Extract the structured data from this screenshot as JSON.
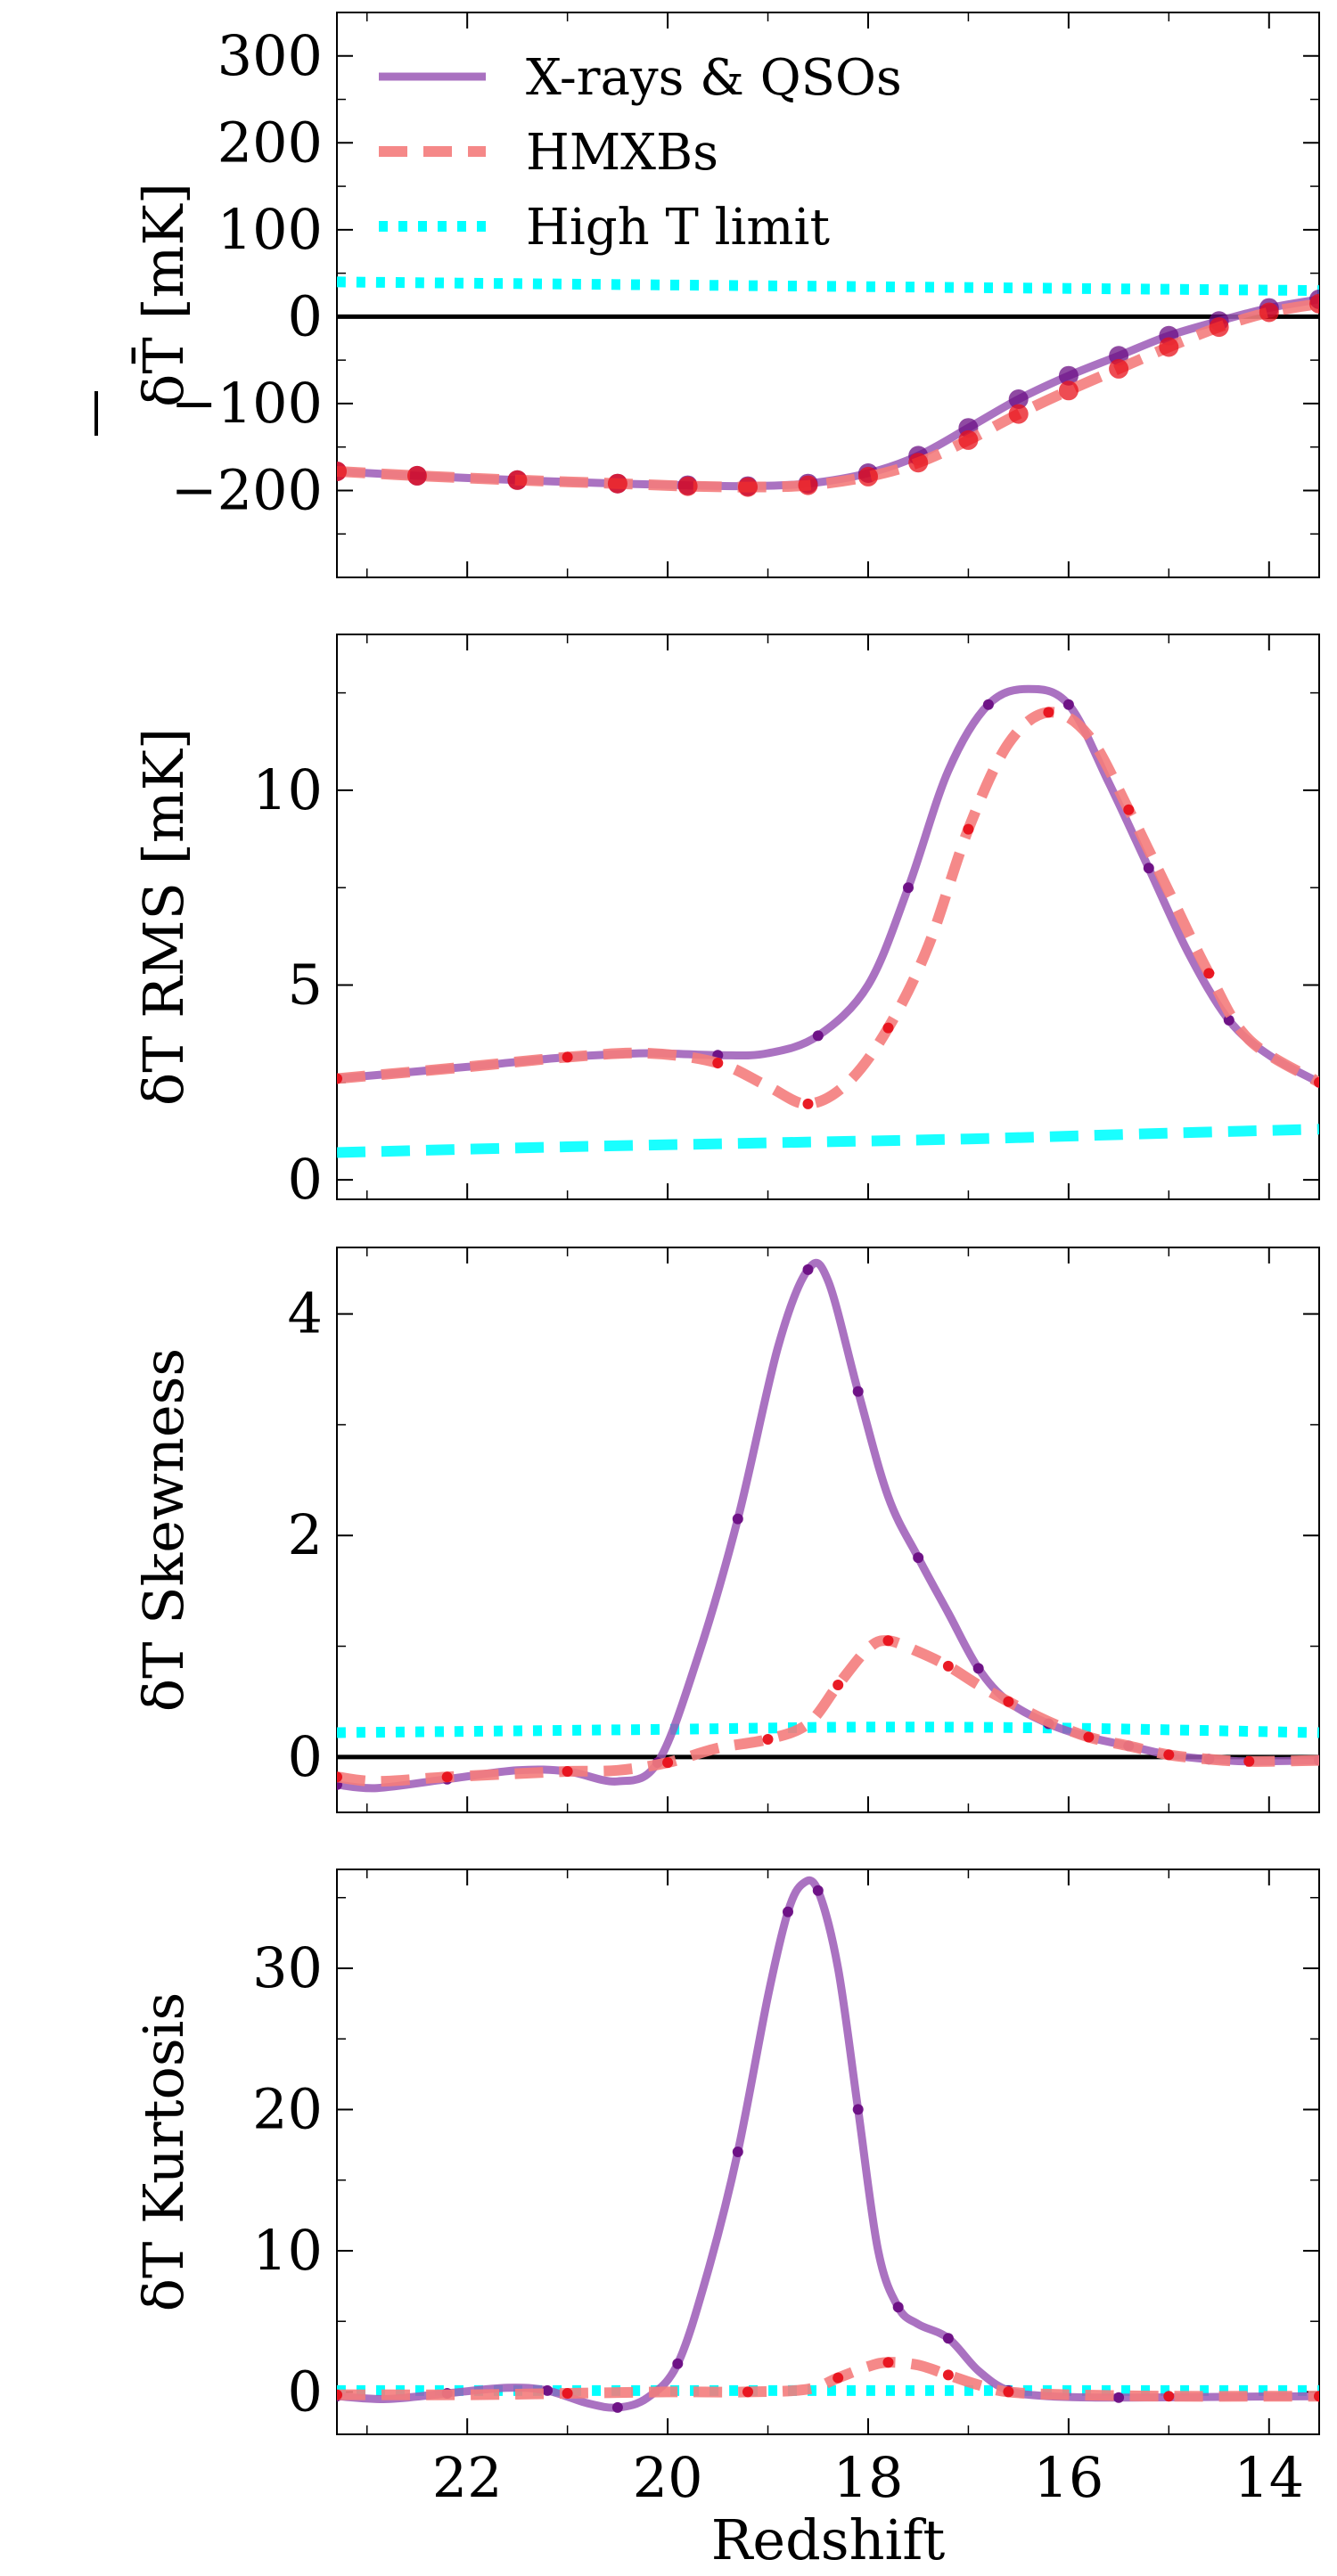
{
  "chart_data": [
    {
      "type": "line",
      "panel": "mean-brightness-temperature",
      "ylabel": "δT̄ [mK]",
      "xlim": [
        23.3,
        13.5
      ],
      "ylim": [
        -300,
        350
      ],
      "yticks": [
        -200,
        -100,
        0,
        100,
        200,
        300
      ],
      "ytick_labels": [
        "−200",
        "−100",
        "0",
        "100",
        "200",
        "300"
      ],
      "xticks": [
        22,
        20,
        18,
        16,
        14
      ],
      "x_tick_labels_shown": false,
      "reference_line": 0,
      "legend": {
        "position": "top-left"
      },
      "series": [
        {
          "name": "X-rays & QSOs",
          "style": "solid",
          "color": "#9b59b6",
          "markers": true,
          "x": [
            23.3,
            22.5,
            21.5,
            20.5,
            19.8,
            19.2,
            18.6,
            18.0,
            17.5,
            17.0,
            16.5,
            16.0,
            15.5,
            15.0,
            14.5,
            14.0,
            13.5
          ],
          "values": [
            -178,
            -183,
            -188,
            -192,
            -194,
            -195,
            -192,
            -180,
            -160,
            -128,
            -95,
            -68,
            -45,
            -22,
            -5,
            10,
            20
          ]
        },
        {
          "name": "HMXBs",
          "style": "dashed",
          "color": "#f47c7c",
          "markers": true,
          "x": [
            23.3,
            22.5,
            21.5,
            20.5,
            19.8,
            19.2,
            18.6,
            18.0,
            17.5,
            17.0,
            16.5,
            16.0,
            15.5,
            15.0,
            14.5,
            14.0,
            13.5
          ],
          "values": [
            -178,
            -183,
            -188,
            -192,
            -195,
            -196,
            -194,
            -184,
            -168,
            -142,
            -112,
            -85,
            -60,
            -35,
            -12,
            5,
            15
          ]
        },
        {
          "name": "High T limit",
          "style": "dotted",
          "color": "#00ffff",
          "markers": false,
          "x": [
            23.3,
            21.5,
            19.5,
            17.5,
            15.5,
            13.5
          ],
          "values": [
            40,
            38,
            36,
            34,
            32,
            30
          ]
        }
      ]
    },
    {
      "type": "line",
      "panel": "rms",
      "ylabel": "δT RMS [mK]",
      "xlim": [
        23.3,
        13.5
      ],
      "ylim": [
        -0.5,
        14
      ],
      "yticks": [
        0,
        5,
        10
      ],
      "ytick_labels": [
        "0",
        "5",
        "10"
      ],
      "xticks": [
        22,
        20,
        18,
        16,
        14
      ],
      "x_tick_labels_shown": false,
      "series": [
        {
          "name": "X-rays & QSOs",
          "style": "solid",
          "color": "#9b59b6",
          "markers": true,
          "x": [
            23.3,
            22.0,
            21.0,
            20.2,
            19.5,
            19.0,
            18.5,
            18.0,
            17.6,
            17.2,
            16.8,
            16.4,
            16.0,
            15.6,
            15.2,
            14.8,
            14.4,
            14.0,
            13.5
          ],
          "values": [
            2.6,
            2.9,
            3.15,
            3.25,
            3.2,
            3.25,
            3.7,
            5.0,
            7.5,
            10.5,
            12.2,
            12.6,
            12.2,
            10.2,
            8.0,
            5.8,
            4.1,
            3.2,
            2.5
          ]
        },
        {
          "name": "HMXBs",
          "style": "dashed",
          "color": "#f47c7c",
          "markers": true,
          "x": [
            23.3,
            22.0,
            21.0,
            20.2,
            19.5,
            19.0,
            18.6,
            18.2,
            17.8,
            17.4,
            17.0,
            16.6,
            16.2,
            15.8,
            15.4,
            15.0,
            14.6,
            14.2,
            13.5
          ],
          "values": [
            2.6,
            2.9,
            3.15,
            3.25,
            3.0,
            2.4,
            1.95,
            2.5,
            3.9,
            6.0,
            9.0,
            11.2,
            12.0,
            11.4,
            9.5,
            7.4,
            5.3,
            3.6,
            2.5
          ]
        },
        {
          "name": "High T limit",
          "style": "dashed",
          "color": "#00ffff",
          "markers": false,
          "x": [
            23.3,
            21.0,
            19.0,
            17.0,
            15.0,
            13.5
          ],
          "values": [
            0.7,
            0.85,
            0.95,
            1.05,
            1.2,
            1.3
          ]
        }
      ]
    },
    {
      "type": "line",
      "panel": "skewness",
      "ylabel": "δT Skewness",
      "xlim": [
        23.3,
        13.5
      ],
      "ylim": [
        -0.5,
        4.6
      ],
      "yticks": [
        0,
        2,
        4
      ],
      "ytick_labels": [
        "0",
        "2",
        "4"
      ],
      "xticks": [
        22,
        20,
        18,
        16,
        14
      ],
      "x_tick_labels_shown": false,
      "reference_line": 0,
      "series": [
        {
          "name": "X-rays & QSOs",
          "style": "solid",
          "color": "#9b59b6",
          "markers": true,
          "x": [
            23.3,
            22.9,
            22.2,
            21.5,
            21.0,
            20.5,
            20.1,
            19.7,
            19.3,
            18.9,
            18.6,
            18.4,
            18.1,
            17.8,
            17.5,
            17.2,
            16.9,
            16.6,
            16.2,
            15.8,
            15.4,
            15.0,
            14.6,
            14.2,
            13.5
          ],
          "values": [
            -0.25,
            -0.28,
            -0.2,
            -0.12,
            -0.13,
            -0.22,
            -0.05,
            0.9,
            2.15,
            3.7,
            4.4,
            4.3,
            3.3,
            2.35,
            1.8,
            1.3,
            0.8,
            0.5,
            0.3,
            0.18,
            0.1,
            0.02,
            -0.02,
            -0.04,
            -0.03
          ]
        },
        {
          "name": "HMXBs",
          "style": "dashed",
          "color": "#f47c7c",
          "markers": true,
          "x": [
            23.3,
            22.9,
            22.2,
            21.5,
            21.0,
            20.5,
            20.0,
            19.5,
            19.0,
            18.6,
            18.3,
            18.0,
            17.8,
            17.5,
            17.2,
            16.9,
            16.6,
            16.2,
            15.8,
            15.4,
            15.0,
            14.6,
            14.2,
            13.5
          ],
          "values": [
            -0.18,
            -0.22,
            -0.18,
            -0.15,
            -0.13,
            -0.12,
            -0.05,
            0.08,
            0.16,
            0.3,
            0.65,
            0.98,
            1.05,
            0.95,
            0.82,
            0.65,
            0.5,
            0.32,
            0.18,
            0.1,
            0.02,
            -0.02,
            -0.04,
            -0.03
          ]
        },
        {
          "name": "High T limit",
          "style": "dotted",
          "color": "#00ffff",
          "markers": false,
          "x": [
            23.3,
            20.0,
            18.0,
            16.0,
            13.5
          ],
          "values": [
            0.22,
            0.25,
            0.27,
            0.26,
            0.22
          ]
        }
      ]
    },
    {
      "type": "line",
      "panel": "kurtosis",
      "ylabel": "δT Kurtosis",
      "xlabel": "Redshift",
      "xlim": [
        23.3,
        13.5
      ],
      "ylim": [
        -3,
        37
      ],
      "yticks": [
        0,
        10,
        20,
        30
      ],
      "ytick_labels": [
        "0",
        "10",
        "20",
        "30"
      ],
      "xticks": [
        22,
        20,
        18,
        16,
        14
      ],
      "xtick_labels": [
        "22",
        "20",
        "18",
        "16",
        "14"
      ],
      "x_tick_labels_shown": true,
      "series": [
        {
          "name": "X-rays & QSOs",
          "style": "solid",
          "color": "#9b59b6",
          "markers": true,
          "x": [
            23.3,
            22.8,
            22.2,
            21.6,
            21.2,
            20.8,
            20.5,
            20.2,
            19.9,
            19.6,
            19.3,
            19.0,
            18.8,
            18.65,
            18.5,
            18.3,
            18.1,
            17.9,
            17.7,
            17.5,
            17.2,
            16.9,
            16.6,
            16.2,
            15.5,
            14.5,
            13.5
          ],
          "values": [
            -0.3,
            -0.5,
            -0.1,
            0.3,
            0.1,
            -0.8,
            -1.1,
            -0.4,
            2.0,
            8.5,
            17.0,
            28.0,
            34.0,
            36.0,
            35.5,
            30.0,
            20.0,
            10.0,
            6.0,
            4.8,
            3.8,
            1.5,
            0.1,
            -0.3,
            -0.4,
            -0.35,
            -0.3
          ]
        },
        {
          "name": "HMXBs",
          "style": "dashed",
          "color": "#f47c7c",
          "markers": true,
          "x": [
            23.3,
            22.0,
            21.0,
            20.0,
            19.2,
            18.6,
            18.3,
            18.0,
            17.8,
            17.5,
            17.2,
            16.9,
            16.6,
            16.0,
            15.0,
            14.0,
            13.5
          ],
          "values": [
            -0.2,
            -0.2,
            -0.1,
            0.0,
            0.0,
            0.2,
            1.0,
            1.8,
            2.1,
            1.9,
            1.2,
            0.5,
            0.0,
            -0.2,
            -0.3,
            -0.3,
            -0.3
          ]
        },
        {
          "name": "High T limit",
          "style": "dotted",
          "color": "#00ffff",
          "markers": false,
          "x": [
            23.3,
            20.0,
            17.0,
            13.5
          ],
          "values": [
            0.1,
            0.1,
            0.1,
            0.1
          ]
        }
      ]
    }
  ]
}
